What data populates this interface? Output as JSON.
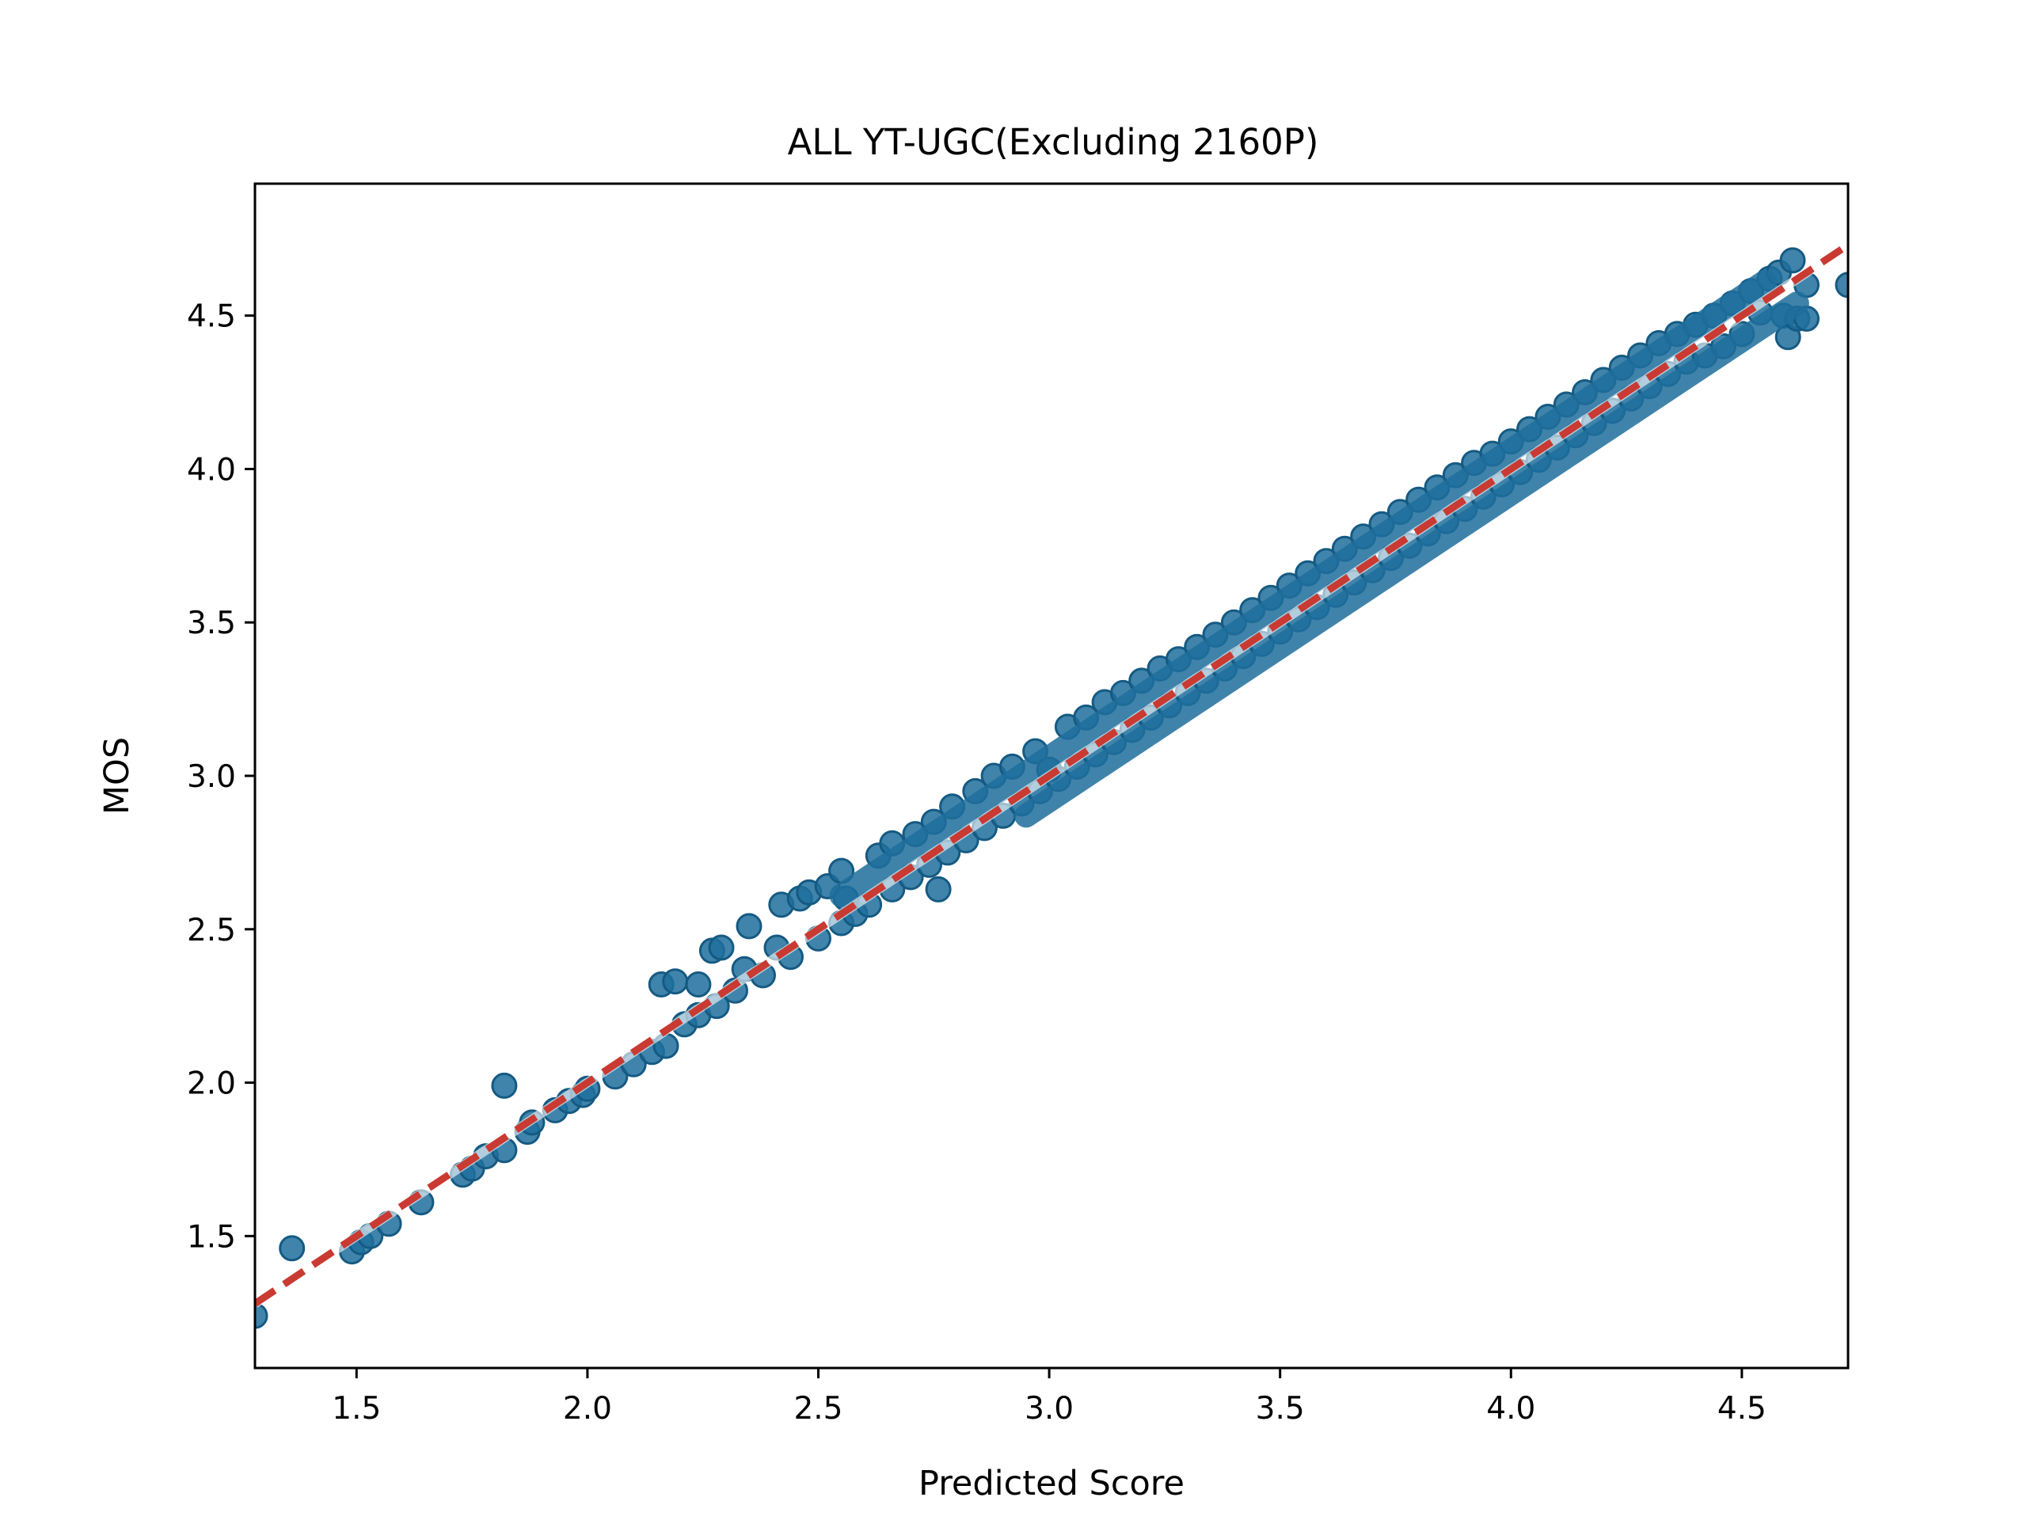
{
  "chart_data": {
    "type": "scatter",
    "title": "ALL YT-UGC(Excluding 2160P)",
    "xlabel": "Predicted Score",
    "ylabel": "MOS",
    "xlim": [
      1.28,
      4.73
    ],
    "ylim": [
      1.07,
      4.93
    ],
    "xticks": [
      1.5,
      2.0,
      2.5,
      3.0,
      3.5,
      4.0,
      4.5
    ],
    "yticks": [
      1.5,
      2.0,
      2.5,
      3.0,
      3.5,
      4.0,
      4.5
    ],
    "xtick_labels": [
      "1.5",
      "2.0",
      "2.5",
      "3.0",
      "3.5",
      "4.0",
      "4.5"
    ],
    "ytick_labels": [
      "1.5",
      "2.0",
      "2.5",
      "3.0",
      "3.5",
      "4.0",
      "4.5"
    ],
    "grid": false,
    "point_color": "#1f6e9c",
    "fit_line": {
      "x": [
        1.28,
        4.73
      ],
      "y": [
        1.28,
        4.73
      ],
      "color": "#c93a32",
      "style": "dashed"
    },
    "series": [
      {
        "points": [
          [
            1.28,
            1.24
          ],
          [
            1.36,
            1.46
          ],
          [
            1.49,
            1.45
          ],
          [
            1.51,
            1.48
          ],
          [
            1.53,
            1.5
          ],
          [
            1.57,
            1.54
          ],
          [
            1.64,
            1.61
          ],
          [
            1.73,
            1.7
          ],
          [
            1.75,
            1.72
          ],
          [
            1.78,
            1.76
          ],
          [
            1.82,
            1.78
          ],
          [
            1.82,
            1.99
          ],
          [
            1.87,
            1.84
          ],
          [
            1.88,
            1.87
          ],
          [
            1.93,
            1.91
          ],
          [
            1.96,
            1.94
          ],
          [
            1.99,
            1.96
          ],
          [
            2.0,
            1.98
          ],
          [
            2.06,
            2.02
          ],
          [
            2.1,
            2.06
          ],
          [
            2.14,
            2.1
          ],
          [
            2.17,
            2.12
          ],
          [
            2.16,
            2.32
          ],
          [
            2.19,
            2.33
          ],
          [
            2.21,
            2.19
          ],
          [
            2.24,
            2.22
          ],
          [
            2.24,
            2.32
          ],
          [
            2.28,
            2.25
          ],
          [
            2.27,
            2.43
          ],
          [
            2.29,
            2.44
          ],
          [
            2.32,
            2.3
          ],
          [
            2.34,
            2.37
          ],
          [
            2.35,
            2.51
          ],
          [
            2.38,
            2.35
          ],
          [
            2.41,
            2.44
          ],
          [
            2.42,
            2.58
          ],
          [
            2.44,
            2.41
          ],
          [
            2.46,
            2.6
          ],
          [
            2.48,
            2.62
          ],
          [
            2.5,
            2.47
          ],
          [
            2.52,
            2.64
          ],
          [
            2.55,
            2.52
          ],
          [
            2.55,
            2.69
          ],
          [
            2.56,
            2.6
          ],
          [
            2.58,
            2.55
          ],
          [
            2.61,
            2.58
          ],
          [
            2.63,
            2.74
          ],
          [
            2.66,
            2.63
          ],
          [
            2.66,
            2.78
          ],
          [
            2.7,
            2.67
          ],
          [
            2.71,
            2.81
          ],
          [
            2.74,
            2.71
          ],
          [
            2.75,
            2.85
          ],
          [
            2.76,
            2.63
          ],
          [
            2.78,
            2.75
          ],
          [
            2.79,
            2.9
          ],
          [
            2.82,
            2.79
          ],
          [
            2.84,
            2.95
          ],
          [
            2.86,
            2.83
          ],
          [
            2.88,
            3.0
          ],
          [
            2.9,
            2.87
          ],
          [
            2.92,
            3.03
          ],
          [
            2.94,
            2.91
          ],
          [
            2.97,
            3.08
          ],
          [
            2.98,
            2.95
          ],
          [
            3.0,
            3.02
          ],
          [
            3.02,
            2.99
          ],
          [
            3.04,
            3.16
          ],
          [
            3.06,
            3.03
          ],
          [
            3.08,
            3.19
          ],
          [
            3.1,
            3.07
          ],
          [
            3.12,
            3.24
          ],
          [
            3.14,
            3.11
          ],
          [
            3.16,
            3.27
          ],
          [
            3.18,
            3.15
          ],
          [
            3.2,
            3.31
          ],
          [
            3.22,
            3.19
          ],
          [
            3.24,
            3.35
          ],
          [
            3.26,
            3.23
          ],
          [
            3.28,
            3.38
          ],
          [
            3.3,
            3.27
          ],
          [
            3.32,
            3.42
          ],
          [
            3.34,
            3.31
          ],
          [
            3.36,
            3.46
          ],
          [
            3.38,
            3.35
          ],
          [
            3.4,
            3.5
          ],
          [
            3.42,
            3.39
          ],
          [
            3.44,
            3.54
          ],
          [
            3.46,
            3.43
          ],
          [
            3.48,
            3.58
          ],
          [
            3.5,
            3.47
          ],
          [
            3.52,
            3.62
          ],
          [
            3.54,
            3.51
          ],
          [
            3.56,
            3.66
          ],
          [
            3.58,
            3.55
          ],
          [
            3.6,
            3.7
          ],
          [
            3.62,
            3.59
          ],
          [
            3.64,
            3.74
          ],
          [
            3.66,
            3.63
          ],
          [
            3.68,
            3.78
          ],
          [
            3.7,
            3.67
          ],
          [
            3.72,
            3.82
          ],
          [
            3.74,
            3.71
          ],
          [
            3.76,
            3.86
          ],
          [
            3.78,
            3.75
          ],
          [
            3.8,
            3.9
          ],
          [
            3.82,
            3.79
          ],
          [
            3.84,
            3.94
          ],
          [
            3.86,
            3.83
          ],
          [
            3.88,
            3.98
          ],
          [
            3.9,
            3.87
          ],
          [
            3.92,
            4.02
          ],
          [
            3.94,
            3.91
          ],
          [
            3.96,
            4.05
          ],
          [
            3.98,
            3.95
          ],
          [
            4.0,
            4.09
          ],
          [
            4.02,
            3.99
          ],
          [
            4.04,
            4.13
          ],
          [
            4.06,
            4.03
          ],
          [
            4.08,
            4.17
          ],
          [
            4.1,
            4.07
          ],
          [
            4.12,
            4.21
          ],
          [
            4.14,
            4.11
          ],
          [
            4.16,
            4.25
          ],
          [
            4.18,
            4.15
          ],
          [
            4.2,
            4.29
          ],
          [
            4.22,
            4.19
          ],
          [
            4.24,
            4.33
          ],
          [
            4.26,
            4.23
          ],
          [
            4.28,
            4.37
          ],
          [
            4.3,
            4.27
          ],
          [
            4.32,
            4.41
          ],
          [
            4.34,
            4.31
          ],
          [
            4.36,
            4.44
          ],
          [
            4.38,
            4.35
          ],
          [
            4.4,
            4.47
          ],
          [
            4.42,
            4.37
          ],
          [
            4.44,
            4.5
          ],
          [
            4.46,
            4.4
          ],
          [
            4.48,
            4.54
          ],
          [
            4.5,
            4.44
          ],
          [
            4.52,
            4.58
          ],
          [
            4.54,
            4.51
          ],
          [
            4.56,
            4.62
          ],
          [
            4.58,
            4.64
          ],
          [
            4.59,
            4.5
          ],
          [
            4.6,
            4.43
          ],
          [
            4.61,
            4.68
          ],
          [
            4.62,
            4.49
          ],
          [
            4.64,
            4.6
          ],
          [
            4.64,
            4.49
          ],
          [
            4.73,
            4.6
          ]
        ]
      }
    ]
  }
}
